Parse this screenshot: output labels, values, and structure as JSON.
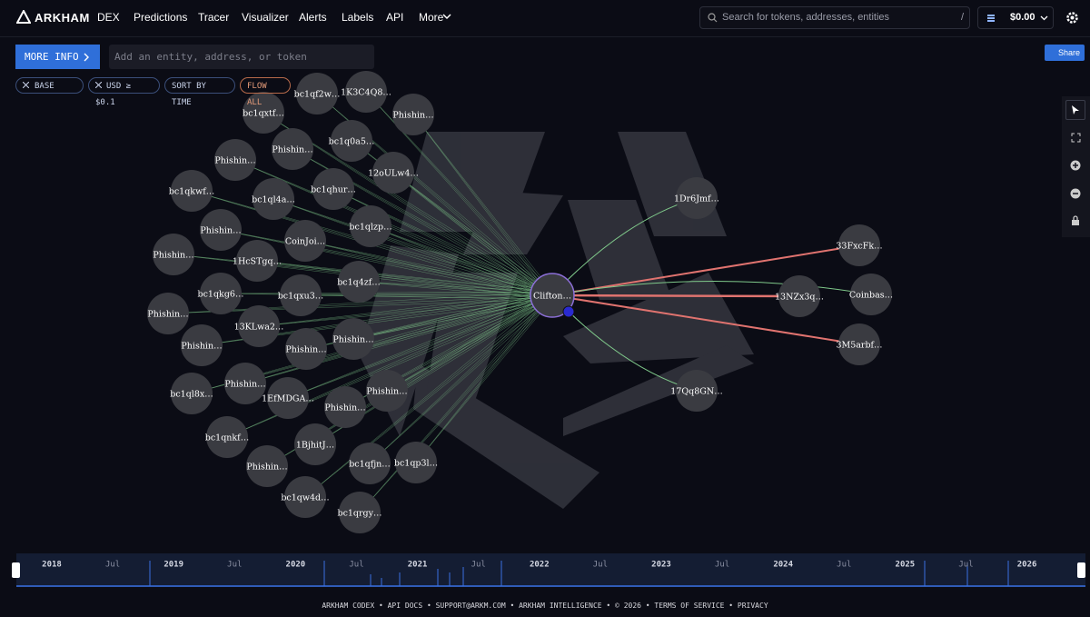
{
  "nav": {
    "brand": "ARKHAM",
    "links": [
      "DEX",
      "Predictions",
      "Tracer",
      "Visualizer",
      "Alerts",
      "Labels",
      "API"
    ],
    "more": "More",
    "search_placeholder": "Search for tokens, addresses, entities",
    "search_shortcut": "/",
    "balance": "$0.00"
  },
  "toolbar": {
    "more_info": "MORE INFO",
    "input_placeholder": "Add an entity, address, or token",
    "share": "Share"
  },
  "filters": {
    "chain": "BASE",
    "usd": "USD ≥ $0.1",
    "sort": "SORT BY TIME",
    "flow": "FLOW ALL"
  },
  "graph": {
    "center": "Clifton…",
    "left_nodes": [
      "bc1qf2w…",
      "1K3C4Q8…",
      "bc1qxtf…",
      "Phishin…",
      "bc1q0a5…",
      "Phishin…",
      "Phishin…",
      "12oULw4…",
      "bc1qkwf…",
      "bc1ql4a…",
      "bc1qhur…",
      "bc1qlzp…",
      "Phishin…",
      "CoinJoi…",
      "Phishin…",
      "1HcSTgq…",
      "bc1q4zf…",
      "bc1qkg6…",
      "bc1qxu3…",
      "Phishin…",
      "13KLwa2…",
      "Phishin…",
      "Phishin…",
      "Phishin…",
      "Phishin…",
      "bc1ql8x…",
      "Phishin…",
      "1EfMDGA…",
      "Phishin…",
      "bc1qnkf…",
      "1BjhitJ…",
      "Phishin…",
      "bc1qfjn…",
      "bc1qp3l…",
      "bc1qw4d…",
      "bc1qrgy…"
    ],
    "right_nodes": [
      "1Dr6Jmf…",
      "33FxcFk…",
      "13NZx3q…",
      "Coinbas…",
      "3M5arbf…",
      "17Qq8GN…"
    ]
  },
  "timeline": {
    "labels": [
      "2018",
      "Jul",
      "2019",
      "Jul",
      "2020",
      "Jul",
      "2021",
      "Jul",
      "2022",
      "Jul",
      "2023",
      "Jul",
      "2024",
      "Jul",
      "2025",
      "Jul",
      "2026"
    ]
  },
  "footer": "ARKHAM CODEX • API DOCS • SUPPORT@ARKM.COM • ARKHAM INTELLIGENCE • © 2026 • TERMS OF SERVICE • PRIVACY"
}
